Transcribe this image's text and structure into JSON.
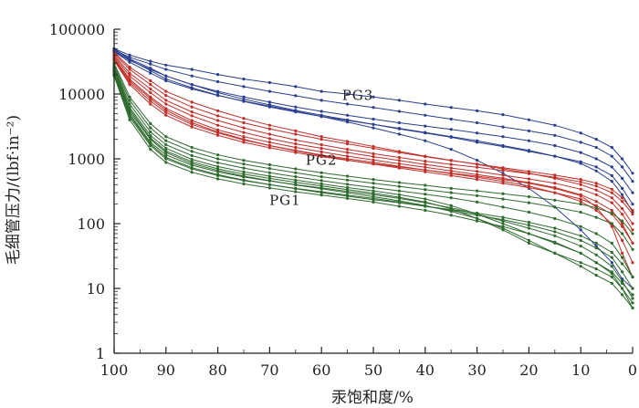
{
  "chart_data": {
    "type": "line",
    "title": "",
    "xlabel": "汞饱和度/%",
    "ylabel": "毛细管压力/(lbf·in⁻²)",
    "x_reversed": true,
    "y_scale": "log",
    "xlim": [
      100,
      0
    ],
    "ylim": [
      1,
      100000
    ],
    "x_ticks": [
      100,
      90,
      80,
      70,
      60,
      50,
      40,
      30,
      20,
      10,
      0
    ],
    "y_ticks": [
      1,
      10,
      100,
      1000,
      10000,
      100000
    ],
    "x_tick_labels": [
      "100",
      "90",
      "80",
      "70",
      "60",
      "50",
      "40",
      "30",
      "20",
      "10",
      "0"
    ],
    "y_tick_labels": [
      "1",
      "10",
      "100",
      "1000",
      "10000",
      "100000"
    ],
    "grid": false,
    "annotations": [
      {
        "text": "PG3",
        "x": 53,
        "y": 9500,
        "color": "#2b3f8f"
      },
      {
        "text": "PG2",
        "x": 60,
        "y": 960,
        "color": "#c0302a"
      },
      {
        "text": "PG1",
        "x": 67,
        "y": 230,
        "color": "#2f6b2f"
      }
    ],
    "x": [
      100,
      97,
      93,
      90,
      85,
      80,
      75,
      70,
      65,
      60,
      55,
      50,
      45,
      40,
      35,
      30,
      25,
      20,
      15,
      10,
      7,
      4,
      2,
      0
    ],
    "series": [
      {
        "name": "PG3",
        "color": "#2b3f8f",
        "values": [
          50000,
          40000,
          32000,
          28000,
          24000,
          20000,
          17000,
          15000,
          13000,
          11000,
          10000,
          9000,
          8000,
          7000,
          6200,
          5500,
          4800,
          4000,
          3300,
          2500,
          2000,
          1500,
          1000,
          600
        ]
      },
      {
        "name": "PG3",
        "color": "#2b3f8f",
        "values": [
          48000,
          37000,
          29000,
          24000,
          19000,
          15500,
          13000,
          11000,
          9400,
          8000,
          7000,
          6200,
          5400,
          4700,
          4100,
          3600,
          3100,
          2700,
          2300,
          1800,
          1500,
          1100,
          750,
          450
        ]
      },
      {
        "name": "PG3",
        "color": "#2b3f8f",
        "values": [
          46000,
          33000,
          24000,
          19000,
          14000,
          11000,
          9000,
          7500,
          6300,
          5400,
          4700,
          4100,
          3600,
          3200,
          2850,
          2500,
          2200,
          1900,
          1600,
          1250,
          1000,
          750,
          500,
          300
        ]
      },
      {
        "name": "PG3",
        "color": "#2b3f8f",
        "values": [
          50000,
          35000,
          25000,
          19000,
          14000,
          10500,
          8300,
          6800,
          5600,
          4700,
          4000,
          3400,
          2900,
          2500,
          2150,
          1800,
          1550,
          1300,
          1100,
          900,
          750,
          550,
          350,
          200
        ]
      },
      {
        "name": "PG3",
        "color": "#2b3f8f",
        "values": [
          45000,
          31000,
          21000,
          16000,
          12000,
          9500,
          7800,
          6500,
          5400,
          4500,
          3700,
          3000,
          2400,
          1900,
          1400,
          950,
          600,
          350,
          180,
          80,
          45,
          25,
          14,
          10
        ]
      },
      {
        "name": "PG3",
        "color": "#2b3f8f",
        "values": [
          47000,
          34000,
          23000,
          17000,
          12500,
          9600,
          7700,
          6300,
          5300,
          4500,
          3900,
          3400,
          2950,
          2550,
          2200,
          1900,
          1600,
          1350,
          1100,
          850,
          650,
          450,
          280,
          150
        ]
      },
      {
        "name": "PG2",
        "color": "#c0302a",
        "values": [
          44000,
          26000,
          16000,
          11000,
          7500,
          5500,
          4200,
          3300,
          2700,
          2200,
          1850,
          1550,
          1300,
          1100,
          950,
          820,
          700,
          600,
          500,
          400,
          330,
          250,
          170,
          100
        ]
      },
      {
        "name": "PG2",
        "color": "#c0302a",
        "values": [
          42000,
          24000,
          14000,
          9500,
          6300,
          4600,
          3600,
          2900,
          2400,
          2000,
          1700,
          1450,
          1250,
          1080,
          940,
          830,
          730,
          640,
          560,
          480,
          420,
          340,
          250,
          160
        ]
      },
      {
        "name": "PG2",
        "color": "#c0302a",
        "values": [
          40000,
          21000,
          12000,
          8000,
          5300,
          3900,
          3000,
          2400,
          1950,
          1650,
          1400,
          1200,
          1050,
          920,
          820,
          740,
          660,
          590,
          520,
          440,
          380,
          300,
          220,
          140
        ]
      },
      {
        "name": "PG2",
        "color": "#c0302a",
        "values": [
          38000,
          19000,
          10500,
          7000,
          4600,
          3300,
          2550,
          2050,
          1700,
          1450,
          1250,
          1080,
          940,
          820,
          720,
          640,
          560,
          490,
          420,
          340,
          280,
          210,
          140,
          80
        ]
      },
      {
        "name": "PG2",
        "color": "#c0302a",
        "values": [
          36000,
          17000,
          9000,
          6000,
          3900,
          2800,
          2200,
          1800,
          1500,
          1280,
          1100,
          960,
          840,
          740,
          650,
          570,
          500,
          430,
          360,
          280,
          220,
          160,
          100,
          50
        ]
      },
      {
        "name": "PG2",
        "color": "#c0302a",
        "values": [
          34000,
          15000,
          7800,
          5200,
          3400,
          2500,
          1950,
          1600,
          1350,
          1150,
          1000,
          880,
          770,
          670,
          590,
          520,
          450,
          380,
          300,
          220,
          160,
          100,
          55,
          25
        ]
      },
      {
        "name": "PG2",
        "color": "#c0302a",
        "values": [
          33000,
          14000,
          7000,
          4700,
          3100,
          2300,
          1800,
          1480,
          1250,
          1080,
          950,
          840,
          750,
          670,
          600,
          540,
          480,
          420,
          350,
          270,
          180,
          90,
          35,
          15
        ]
      },
      {
        "name": "PG2",
        "color": "#c0302a",
        "values": [
          35000,
          16000,
          8500,
          5600,
          3600,
          2600,
          2000,
          1600,
          1330,
          1120,
          960,
          830,
          720,
          630,
          550,
          480,
          420,
          360,
          300,
          240,
          190,
          140,
          90,
          50
        ]
      },
      {
        "name": "PG1",
        "color": "#2f6b2f",
        "values": [
          30000,
          9000,
          3500,
          2200,
          1500,
          1150,
          950,
          810,
          700,
          610,
          540,
          480,
          430,
          390,
          350,
          320,
          290,
          260,
          230,
          200,
          175,
          145,
          110,
          70
        ]
      },
      {
        "name": "PG1",
        "color": "#2f6b2f",
        "values": [
          28000,
          8000,
          3000,
          1900,
          1300,
          1000,
          830,
          710,
          610,
          530,
          470,
          420,
          375,
          335,
          300,
          270,
          240,
          210,
          180,
          150,
          125,
          100,
          70,
          40
        ]
      },
      {
        "name": "PG1",
        "color": "#2f6b2f",
        "values": [
          26000,
          7000,
          2600,
          1650,
          1120,
          870,
          720,
          610,
          530,
          460,
          405,
          360,
          320,
          285,
          250,
          215,
          180,
          150,
          120,
          90,
          70,
          50,
          30,
          15
        ]
      },
      {
        "name": "PG1",
        "color": "#2f6b2f",
        "values": [
          25000,
          6200,
          2300,
          1450,
          980,
          760,
          630,
          540,
          470,
          410,
          360,
          320,
          280,
          240,
          190,
          140,
          100,
          70,
          50,
          35,
          25,
          18,
          12,
          8
        ]
      },
      {
        "name": "PG1",
        "color": "#2f6b2f",
        "values": [
          24000,
          5800,
          2100,
          1320,
          900,
          700,
          580,
          500,
          435,
          380,
          335,
          295,
          255,
          215,
          170,
          120,
          80,
          50,
          35,
          25,
          20,
          15,
          10,
          6
        ]
      },
      {
        "name": "PG1",
        "color": "#2f6b2f",
        "values": [
          22000,
          5000,
          1800,
          1150,
          800,
          630,
          525,
          455,
          400,
          355,
          315,
          280,
          245,
          210,
          175,
          140,
          110,
          85,
          65,
          45,
          33,
          22,
          13,
          7
        ]
      },
      {
        "name": "PG1",
        "color": "#2f6b2f",
        "values": [
          20000,
          4400,
          1600,
          1000,
          700,
          550,
          460,
          400,
          350,
          310,
          275,
          245,
          215,
          185,
          160,
          135,
          115,
          95,
          75,
          55,
          42,
          30,
          18,
          10
        ]
      },
      {
        "name": "PG1",
        "color": "#2f6b2f",
        "values": [
          19000,
          4000,
          1400,
          880,
          620,
          490,
          410,
          355,
          310,
          275,
          245,
          215,
          185,
          160,
          135,
          110,
          90,
          70,
          52,
          35,
          25,
          17,
          10,
          5
        ]
      },
      {
        "name": "PG1",
        "color": "#2f6b2f",
        "values": [
          21000,
          4700,
          1700,
          1050,
          730,
          570,
          470,
          400,
          345,
          300,
          265,
          235,
          210,
          185,
          165,
          145,
          125,
          105,
          85,
          65,
          50,
          36,
          24,
          15
        ]
      },
      {
        "name": "PG1",
        "color": "#2f6b2f",
        "values": [
          23000,
          5400,
          2000,
          1250,
          850,
          660,
          540,
          460,
          395,
          345,
          300,
          260,
          225,
          190,
          155,
          120,
          85,
          55,
          35,
          22,
          16,
          12,
          8,
          5
        ]
      }
    ]
  }
}
